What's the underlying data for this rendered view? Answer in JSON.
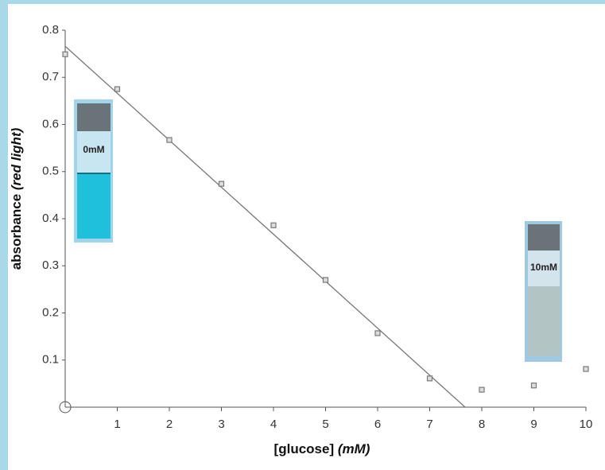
{
  "chart_data": {
    "type": "scatter",
    "xlabel": {
      "text": "[glucose]",
      "emphasis": "(mM)"
    },
    "ylabel": {
      "text": "absorbance",
      "emphasis": "(red light)"
    },
    "x": [
      0,
      1,
      2,
      3,
      4,
      5,
      6,
      7,
      8,
      9,
      10
    ],
    "values": [
      0.749,
      0.675,
      0.567,
      0.474,
      0.386,
      0.27,
      0.157,
      0.061,
      0.037,
      0.046,
      0.081
    ],
    "color": "#777777",
    "trend_line": {
      "x": [
        0,
        7.68
      ],
      "values": [
        0.766,
        0
      ],
      "color": "#777777"
    },
    "xlim": [
      0,
      10
    ],
    "xticks": [
      1,
      2,
      3,
      4,
      5,
      6,
      7,
      8,
      9,
      10
    ],
    "ylim": [
      0,
      0.8
    ],
    "yticks": [
      0.1,
      0.2,
      0.3,
      0.4,
      0.5,
      0.6,
      0.7,
      0.8
    ],
    "annotations": [
      "0mM",
      "10mM"
    ]
  }
}
